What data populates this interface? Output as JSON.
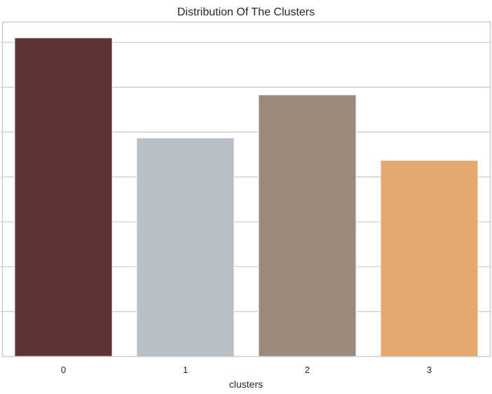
{
  "chart_data": {
    "type": "bar",
    "title": "Distribution Of The Clusters",
    "xlabel": "clusters",
    "ylabel": "",
    "categories": [
      "0",
      "1",
      "2",
      "3"
    ],
    "values": [
      710,
      487,
      583,
      437
    ],
    "colors": [
      "#603434",
      "#b9bfc6",
      "#9b8979",
      "#e2aa6f"
    ],
    "ylim": [
      0,
      745
    ],
    "y_gridlines": [
      100,
      200,
      300,
      400,
      500,
      600,
      700
    ],
    "grid": true,
    "legend": "none"
  }
}
